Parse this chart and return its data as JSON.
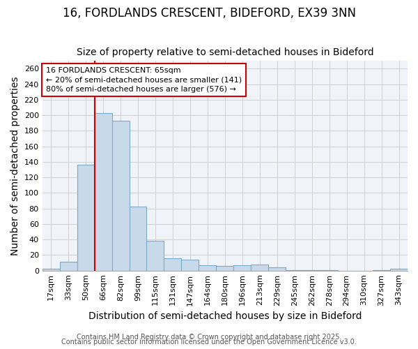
{
  "title_line1": "16, FORDLANDS CRESCENT, BIDEFORD, EX39 3NN",
  "title_line2": "Size of property relative to semi-detached houses in Bideford",
  "xlabel": "Distribution of semi-detached houses by size in Bideford",
  "ylabel": "Number of semi-detached properties",
  "categories": [
    "17sqm",
    "33sqm",
    "50sqm",
    "66sqm",
    "82sqm",
    "99sqm",
    "115sqm",
    "131sqm",
    "147sqm",
    "164sqm",
    "180sqm",
    "196sqm",
    "213sqm",
    "229sqm",
    "245sqm",
    "262sqm",
    "278sqm",
    "294sqm",
    "310sqm",
    "327sqm",
    "343sqm"
  ],
  "values": [
    2,
    11,
    136,
    203,
    193,
    82,
    38,
    16,
    14,
    7,
    6,
    7,
    8,
    4,
    1,
    1,
    1,
    0,
    0,
    1,
    2
  ],
  "bar_color": "#c8daea",
  "bar_edge_color": "#7aaac8",
  "red_line_index": 3,
  "annotation_title": "16 FORDLANDS CRESCENT: 65sqm",
  "annotation_line1": "← 20% of semi-detached houses are smaller (141)",
  "annotation_line2": "80% of semi-detached houses are larger (576) →",
  "annotation_box_facecolor": "#ffffff",
  "annotation_box_edgecolor": "#cc0000",
  "red_line_color": "#cc0000",
  "footer_line1": "Contains HM Land Registry data © Crown copyright and database right 2025.",
  "footer_line2": "Contains public sector information licensed under the Open Government Licence v3.0.",
  "ylim": [
    0,
    270
  ],
  "yticks": [
    0,
    20,
    40,
    60,
    80,
    100,
    120,
    140,
    160,
    180,
    200,
    220,
    240,
    260
  ],
  "grid_color": "#cccccc",
  "background_color": "#ffffff",
  "plot_bg_color": "#f0f4f8",
  "title_fontsize": 12,
  "subtitle_fontsize": 10,
  "axis_label_fontsize": 10,
  "tick_fontsize": 8,
  "annotation_fontsize": 8,
  "footer_fontsize": 7
}
